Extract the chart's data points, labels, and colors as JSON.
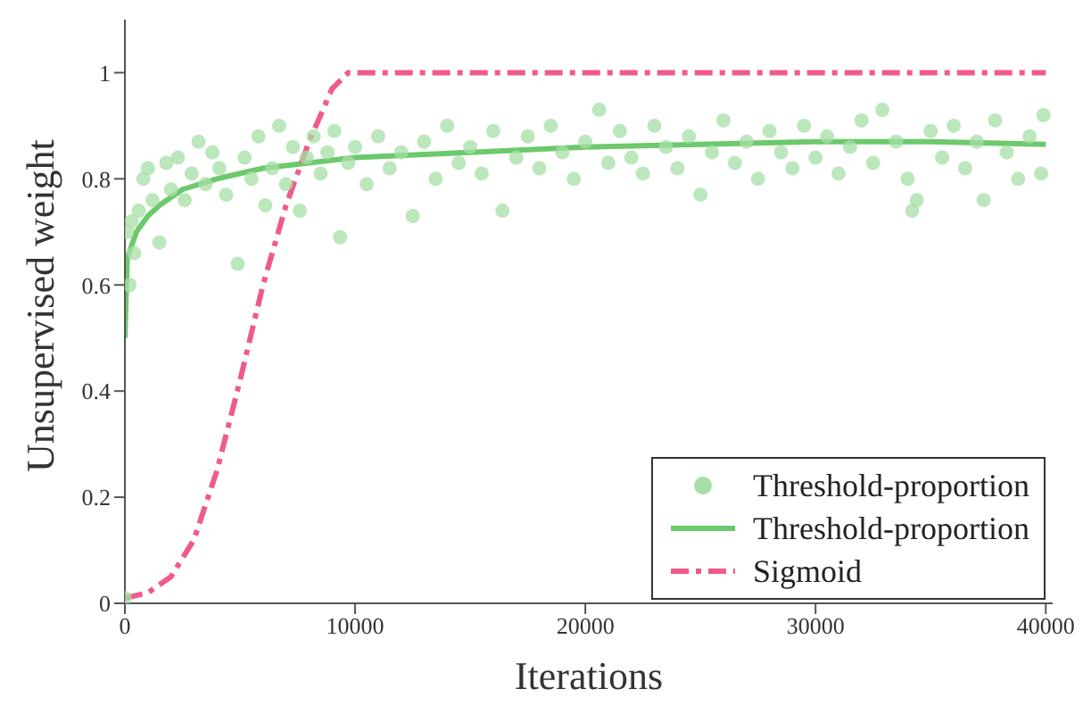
{
  "chart_data": {
    "type": "line",
    "xlabel": "Iterations",
    "ylabel": "Unsupervised weight",
    "xlim": [
      0,
      40300
    ],
    "ylim": [
      0,
      1.1
    ],
    "xticks": [
      0,
      10000,
      20000,
      30000,
      40000
    ],
    "yticks": [
      0,
      0.2,
      0.4,
      0.6,
      0.8,
      1
    ],
    "legend": "bottom right",
    "series": [
      {
        "name": "Threshold-proportion",
        "type": "scatter",
        "marker": "circle",
        "color": "#a6dfa6",
        "x": [
          0,
          100,
          200,
          300,
          400,
          600,
          800,
          1000,
          1200,
          1500,
          1800,
          2000,
          2300,
          2600,
          2900,
          3200,
          3500,
          3800,
          4100,
          4400,
          4900,
          5200,
          5500,
          5800,
          6100,
          6400,
          6700,
          7000,
          7300,
          7600,
          7900,
          8200,
          8500,
          8800,
          9100,
          9350,
          9700,
          10000,
          10500,
          11000,
          11500,
          12000,
          12500,
          13000,
          13500,
          14000,
          14500,
          15000,
          15500,
          16000,
          16400,
          17000,
          17500,
          18000,
          18500,
          19000,
          19500,
          20000,
          20600,
          21000,
          21500,
          22000,
          22500,
          23000,
          23500,
          24000,
          24500,
          25000,
          25500,
          26000,
          26500,
          27000,
          27500,
          28000,
          28500,
          29000,
          29500,
          30000,
          30500,
          31000,
          31500,
          32000,
          32500,
          32900,
          33500,
          34000,
          34200,
          34400,
          35000,
          35500,
          36000,
          36500,
          37000,
          37300,
          37800,
          38300,
          38800,
          39300,
          39800,
          39900
        ],
        "values": [
          0.01,
          0.7,
          0.6,
          0.72,
          0.66,
          0.74,
          0.8,
          0.82,
          0.76,
          0.68,
          0.83,
          0.78,
          0.84,
          0.76,
          0.81,
          0.87,
          0.79,
          0.85,
          0.82,
          0.77,
          0.64,
          0.84,
          0.8,
          0.88,
          0.75,
          0.82,
          0.9,
          0.79,
          0.86,
          0.74,
          0.84,
          0.88,
          0.81,
          0.85,
          0.89,
          0.69,
          0.83,
          0.86,
          0.79,
          0.88,
          0.82,
          0.85,
          0.73,
          0.87,
          0.8,
          0.9,
          0.83,
          0.86,
          0.81,
          0.89,
          0.74,
          0.84,
          0.88,
          0.82,
          0.9,
          0.85,
          0.8,
          0.87,
          0.93,
          0.83,
          0.89,
          0.84,
          0.81,
          0.9,
          0.86,
          0.82,
          0.88,
          0.77,
          0.85,
          0.91,
          0.83,
          0.87,
          0.8,
          0.89,
          0.85,
          0.82,
          0.9,
          0.84,
          0.88,
          0.81,
          0.86,
          0.91,
          0.83,
          0.93,
          0.87,
          0.8,
          0.74,
          0.76,
          0.89,
          0.84,
          0.9,
          0.82,
          0.87,
          0.76,
          0.91,
          0.85,
          0.8,
          0.88,
          0.81,
          0.92
        ]
      },
      {
        "name": "Threshold-proportion",
        "marker": "none",
        "line_style": "solid",
        "color": "#6cc96c",
        "x": [
          0,
          100,
          500,
          1000,
          1500,
          2500,
          4000,
          6000,
          8000,
          10000,
          15000,
          20000,
          25000,
          30000,
          35000,
          40000
        ],
        "values": [
          0.5,
          0.65,
          0.7,
          0.73,
          0.75,
          0.78,
          0.8,
          0.82,
          0.83,
          0.84,
          0.85,
          0.86,
          0.865,
          0.87,
          0.87,
          0.865
        ]
      },
      {
        "name": "Sigmoid",
        "marker": "none",
        "line_style": "dashdot",
        "color": "#ef5a8c",
        "x": [
          0,
          1000,
          2000,
          3000,
          4000,
          5000,
          6000,
          7000,
          8000,
          9000,
          9700,
          40000
        ],
        "values": [
          0.01,
          0.02,
          0.05,
          0.12,
          0.25,
          0.42,
          0.6,
          0.75,
          0.87,
          0.97,
          1,
          1
        ]
      }
    ]
  }
}
